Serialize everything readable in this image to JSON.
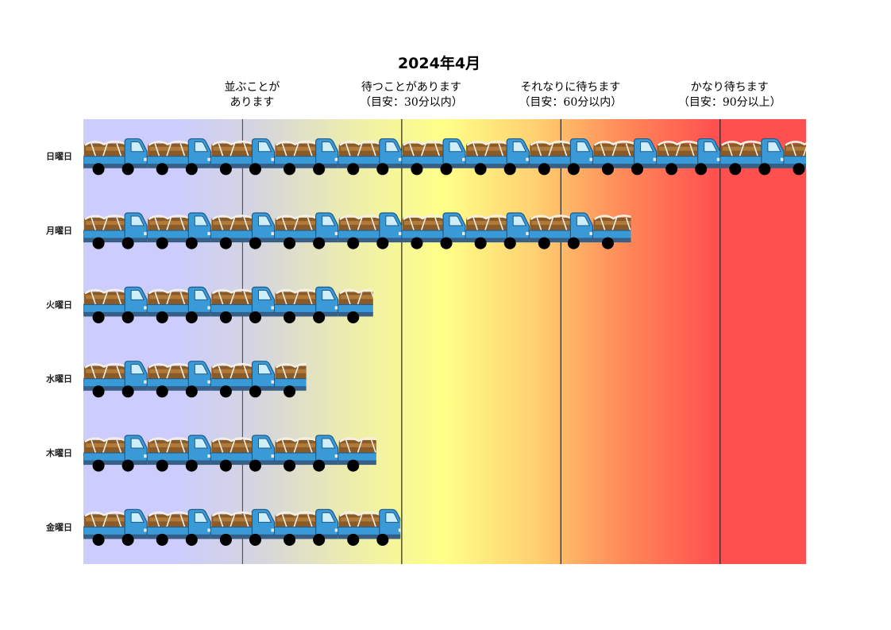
{
  "chart_data": {
    "type": "bar",
    "title": "2024年4月",
    "orientation": "horizontal",
    "categories": [
      "日曜日",
      "月曜日",
      "火曜日",
      "水曜日",
      "木曜日",
      "金曜日"
    ],
    "values": [
      11.35,
      8.6,
      4.55,
      3.5,
      4.6,
      4.98
    ],
    "xlim": [
      0,
      11.35
    ],
    "zone_thresholds": [
      2.5,
      5,
      7.5,
      10
    ],
    "zones": [
      {
        "line1": "並ぶことが",
        "line2": "あります"
      },
      {
        "line1": "待つことがあります",
        "line2": "（目安：30分以内）"
      },
      {
        "line1": "それなりに待ちます",
        "line2": "（目安：60分以内）"
      },
      {
        "line1": "かなり待ちます",
        "line2": "（目安：90分以上）"
      }
    ],
    "gradient_colors": [
      "#ccccff",
      "#ccccff",
      "#d6d6dc",
      "#eeeeaa",
      "#ffff88",
      "#ffd070",
      "#ff8858",
      "#ff5050",
      "#ff5050"
    ],
    "truck_colors": {
      "cab": "#3a9ad8",
      "cargo": "#8a5a28",
      "wheel": "#000000"
    }
  }
}
